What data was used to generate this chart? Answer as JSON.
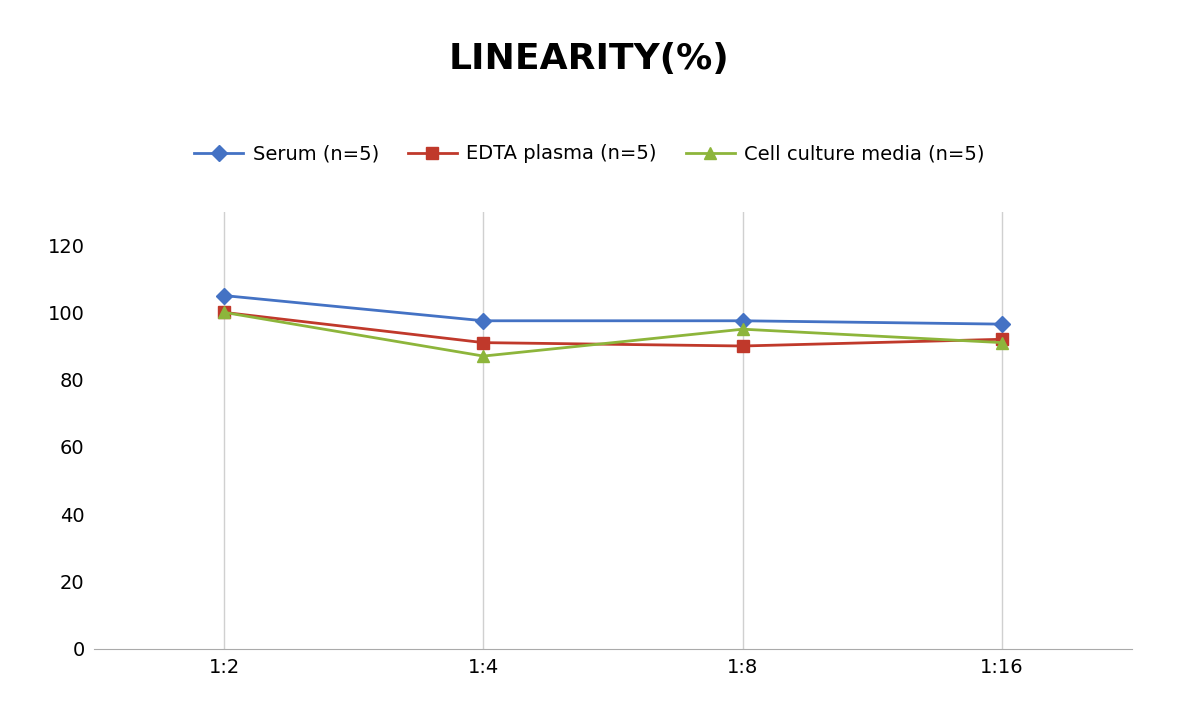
{
  "title": "LINEARITY(%)",
  "x_labels": [
    "1:2",
    "1:4",
    "1:8",
    "1:16"
  ],
  "x_positions": [
    0,
    1,
    2,
    3
  ],
  "series": [
    {
      "label": "Serum (n=5)",
      "values": [
        105,
        97.5,
        97.5,
        96.5
      ],
      "color": "#4472C4",
      "marker": "D",
      "markersize": 8
    },
    {
      "label": "EDTA plasma (n=5)",
      "values": [
        100,
        91,
        90,
        92
      ],
      "color": "#C0392B",
      "marker": "s",
      "markersize": 8
    },
    {
      "label": "Cell culture media (n=5)",
      "values": [
        100,
        87,
        95,
        91
      ],
      "color": "#8DB53B",
      "marker": "^",
      "markersize": 8
    }
  ],
  "ylim": [
    0,
    130
  ],
  "yticks": [
    0,
    20,
    40,
    60,
    80,
    100,
    120
  ],
  "title_fontsize": 26,
  "legend_fontsize": 14,
  "tick_fontsize": 14,
  "background_color": "#ffffff",
  "grid_color": "#d0d0d0"
}
